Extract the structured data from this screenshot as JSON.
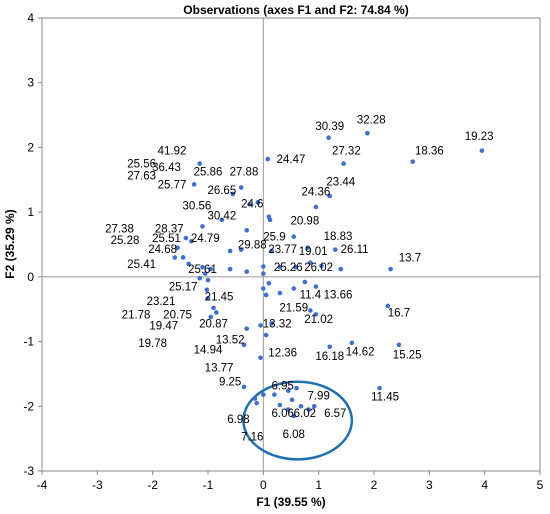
{
  "chart_data": {
    "type": "scatter",
    "title": "Observations (axes F1 and F2: 74.84 %)",
    "xlabel": "F1 (39.55 %)",
    "ylabel": "F2 (35.29 %)",
    "xlim": [
      -4,
      5
    ],
    "ylim": [
      -3,
      4
    ],
    "xticks": [
      "-4",
      "-3",
      "-2",
      "-1",
      "0",
      "1",
      "2",
      "3",
      "4",
      "5"
    ],
    "yticks": [
      "-3",
      "-2",
      "-1",
      "0",
      "1",
      "2",
      "3",
      "4"
    ],
    "grid": false,
    "marker_color": "#3a6fd8",
    "ellipse_color": "#1f6fb5",
    "ellipse": {
      "cx": 0.62,
      "cy": -2.22,
      "rx": 0.98,
      "ry": 0.6
    },
    "points": [
      [
        1.18,
        2.15
      ],
      [
        1.88,
        2.22
      ],
      [
        3.95,
        1.95
      ],
      [
        0.08,
        1.82
      ],
      [
        1.45,
        1.75
      ],
      [
        2.7,
        1.78
      ],
      [
        -1.15,
        1.75
      ],
      [
        -1.25,
        1.43
      ],
      [
        -0.4,
        1.38
      ],
      [
        -0.55,
        1.28
      ],
      [
        -0.1,
        1.15
      ],
      [
        -0.25,
        1.12
      ],
      [
        1.2,
        1.25
      ],
      [
        0.95,
        1.08
      ],
      [
        0.1,
        0.93
      ],
      [
        0.12,
        0.88
      ],
      [
        -0.75,
        0.88
      ],
      [
        0.55,
        0.62
      ],
      [
        -1.1,
        0.78
      ],
      [
        -0.3,
        0.72
      ],
      [
        -1.4,
        0.6
      ],
      [
        -1.55,
        0.45
      ],
      [
        -1.3,
        0.55
      ],
      [
        -0.4,
        0.42
      ],
      [
        -0.6,
        0.4
      ],
      [
        0.15,
        0.4
      ],
      [
        0.8,
        0.45
      ],
      [
        1.3,
        0.42
      ],
      [
        -1.6,
        0.3
      ],
      [
        -1.45,
        0.3
      ],
      [
        -1.35,
        0.2
      ],
      [
        -1.1,
        0.15
      ],
      [
        -0.95,
        0.12
      ],
      [
        -0.6,
        0.12
      ],
      [
        -0.3,
        0.08
      ],
      [
        0.0,
        0.16
      ],
      [
        0.3,
        0.15
      ],
      [
        0.58,
        0.15
      ],
      [
        0.85,
        0.22
      ],
      [
        1.05,
        0.17
      ],
      [
        1.4,
        0.12
      ],
      [
        2.3,
        0.12
      ],
      [
        -1.05,
        0.05
      ],
      [
        -1.0,
        -0.05
      ],
      [
        0.0,
        0.05
      ],
      [
        0.0,
        -0.18
      ],
      [
        0.1,
        -0.1
      ],
      [
        0.75,
        -0.08
      ],
      [
        0.95,
        -0.15
      ],
      [
        -1.15,
        -0.02
      ],
      [
        -1.02,
        -0.2
      ],
      [
        0.05,
        -0.28
      ],
      [
        0.3,
        -0.25
      ],
      [
        0.55,
        -0.18
      ],
      [
        -1.0,
        -0.33
      ],
      [
        -0.9,
        -0.48
      ],
      [
        -0.85,
        -0.55
      ],
      [
        -0.95,
        -0.62
      ],
      [
        0.85,
        -0.52
      ],
      [
        0.95,
        -0.58
      ],
      [
        2.25,
        -0.45
      ],
      [
        2.45,
        -1.05
      ],
      [
        0.15,
        -0.72
      ],
      [
        -0.05,
        -0.75
      ],
      [
        -0.3,
        -0.8
      ],
      [
        0.05,
        -0.9
      ],
      [
        -0.35,
        -1.05
      ],
      [
        1.6,
        -1.02
      ],
      [
        1.2,
        -1.08
      ],
      [
        -0.05,
        -1.25
      ],
      [
        2.1,
        -1.72
      ],
      [
        -0.35,
        -1.7
      ],
      [
        -0.15,
        -1.88
      ],
      [
        -0.12,
        -1.95
      ],
      [
        0.0,
        -1.82
      ],
      [
        0.2,
        -1.82
      ],
      [
        0.45,
        -1.76
      ],
      [
        0.52,
        -1.9
      ],
      [
        0.6,
        -1.72
      ],
      [
        0.68,
        -2.0
      ],
      [
        0.82,
        -2.05
      ],
      [
        0.3,
        -1.98
      ],
      [
        0.45,
        -2.05
      ],
      [
        0.55,
        -2.15
      ],
      [
        0.92,
        -2.0
      ]
    ],
    "labels": [
      {
        "t": "30.39",
        "x": 1.2,
        "y": 2.33
      },
      {
        "t": "32.28",
        "x": 1.95,
        "y": 2.43
      },
      {
        "t": "19.23",
        "x": 3.9,
        "y": 2.18
      },
      {
        "t": "18.36",
        "x": 3.0,
        "y": 1.95
      },
      {
        "t": "27.32",
        "x": 1.5,
        "y": 1.95
      },
      {
        "t": "24.47",
        "x": 0.5,
        "y": 1.82
      },
      {
        "t": "41.92",
        "x": -1.65,
        "y": 1.95
      },
      {
        "t": "36.43",
        "x": -1.75,
        "y": 1.7
      },
      {
        "t": "25.86",
        "x": -1.0,
        "y": 1.63
      },
      {
        "t": "27.88",
        "x": -0.35,
        "y": 1.63
      },
      {
        "t": "23.44",
        "x": 1.4,
        "y": 1.47
      },
      {
        "t": "25.56",
        "x": -2.2,
        "y": 1.75
      },
      {
        "t": "25.77",
        "x": -1.65,
        "y": 1.43
      },
      {
        "t": "26.65",
        "x": -0.75,
        "y": 1.34
      },
      {
        "t": "27.63",
        "x": -2.2,
        "y": 1.57
      },
      {
        "t": "30.56",
        "x": -1.2,
        "y": 1.1
      },
      {
        "t": "24.36",
        "x": 0.95,
        "y": 1.32
      },
      {
        "t": "24.6",
        "x": -0.2,
        "y": 1.13
      },
      {
        "t": "27.38",
        "x": -2.6,
        "y": 0.75
      },
      {
        "t": "28.37",
        "x": -1.7,
        "y": 0.75
      },
      {
        "t": "30.42",
        "x": -0.75,
        "y": 0.95
      },
      {
        "t": "20.98",
        "x": 0.75,
        "y": 0.87
      },
      {
        "t": "25.51",
        "x": -1.75,
        "y": 0.6
      },
      {
        "t": "24.79",
        "x": -1.05,
        "y": 0.6
      },
      {
        "t": "25.9",
        "x": 0.2,
        "y": 0.62
      },
      {
        "t": "18.83",
        "x": 1.35,
        "y": 0.63
      },
      {
        "t": "25.28",
        "x": -2.5,
        "y": 0.57
      },
      {
        "t": "24.68",
        "x": -1.82,
        "y": 0.43
      },
      {
        "t": "29.88",
        "x": -0.2,
        "y": 0.5
      },
      {
        "t": "23.77",
        "x": 0.35,
        "y": 0.43
      },
      {
        "t": "19.01",
        "x": 0.9,
        "y": 0.4
      },
      {
        "t": "26.11",
        "x": 1.65,
        "y": 0.43
      },
      {
        "t": "13.7",
        "x": 2.65,
        "y": 0.3
      },
      {
        "t": "25.41",
        "x": -2.2,
        "y": 0.2
      },
      {
        "t": "25.26",
        "x": 0.45,
        "y": 0.15
      },
      {
        "t": "26.02",
        "x": 1.0,
        "y": 0.15
      },
      {
        "t": "25.61",
        "x": -1.1,
        "y": 0.12
      },
      {
        "t": "25.17",
        "x": -1.45,
        "y": -0.15
      },
      {
        "t": "11.4",
        "x": 0.85,
        "y": -0.27
      },
      {
        "t": "13.66",
        "x": 1.35,
        "y": -0.27
      },
      {
        "t": "21.45",
        "x": -0.8,
        "y": -0.3
      },
      {
        "t": "23.21",
        "x": -1.85,
        "y": -0.37
      },
      {
        "t": "21.59",
        "x": 0.55,
        "y": -0.47
      },
      {
        "t": "21.78",
        "x": -2.3,
        "y": -0.58
      },
      {
        "t": "20.75",
        "x": -1.55,
        "y": -0.58
      },
      {
        "t": "16.7",
        "x": 2.45,
        "y": -0.55
      },
      {
        "t": "21.02",
        "x": 1.0,
        "y": -0.65
      },
      {
        "t": "19.47",
        "x": -1.8,
        "y": -0.75
      },
      {
        "t": "20.87",
        "x": -0.9,
        "y": -0.72
      },
      {
        "t": "13.32",
        "x": 0.25,
        "y": -0.72
      },
      {
        "t": "19.78",
        "x": -2.0,
        "y": -1.02
      },
      {
        "t": "13.52",
        "x": -0.6,
        "y": -0.97
      },
      {
        "t": "14.94",
        "x": -1.0,
        "y": -1.12
      },
      {
        "t": "12.36",
        "x": 0.35,
        "y": -1.17
      },
      {
        "t": "16.18",
        "x": 1.2,
        "y": -1.22
      },
      {
        "t": "14.62",
        "x": 1.75,
        "y": -1.15
      },
      {
        "t": "15.25",
        "x": 2.6,
        "y": -1.2
      },
      {
        "t": "13.77",
        "x": -0.8,
        "y": -1.4
      },
      {
        "t": "9.25",
        "x": -0.6,
        "y": -1.62
      },
      {
        "t": "11.45",
        "x": 2.2,
        "y": -1.85
      },
      {
        "t": "6.95",
        "x": 0.35,
        "y": -1.68
      },
      {
        "t": "7.99",
        "x": 1.0,
        "y": -1.83
      },
      {
        "t": "6.06",
        "x": 0.35,
        "y": -2.1
      },
      {
        "t": "6.02",
        "x": 0.75,
        "y": -2.1
      },
      {
        "t": "6.57",
        "x": 1.3,
        "y": -2.1
      },
      {
        "t": "6.98",
        "x": -0.45,
        "y": -2.2
      },
      {
        "t": "7.16",
        "x": -0.2,
        "y": -2.47
      },
      {
        "t": "6.08",
        "x": 0.55,
        "y": -2.43
      }
    ]
  }
}
